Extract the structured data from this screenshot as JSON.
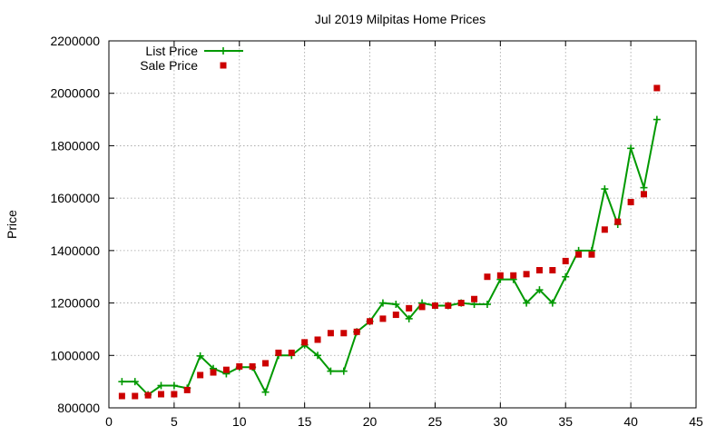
{
  "chart_data": {
    "type": "line",
    "title": "Jul 2019 Milpitas Home Prices",
    "xlabel": "",
    "ylabel": "Price",
    "xlim": [
      0,
      45
    ],
    "ylim": [
      800000,
      2200000
    ],
    "xticks": [
      0,
      5,
      10,
      15,
      20,
      25,
      30,
      35,
      40,
      45
    ],
    "yticks": [
      800000,
      1000000,
      1200000,
      1400000,
      1600000,
      1800000,
      2000000,
      2200000
    ],
    "grid": true,
    "legend_position": "top-left",
    "series": [
      {
        "name": "List Price",
        "style": "line-with-plus-markers",
        "color": "#009900",
        "points": [
          [
            1,
            900000
          ],
          [
            2,
            900000
          ],
          [
            3,
            850000
          ],
          [
            4,
            885000
          ],
          [
            5,
            885000
          ],
          [
            6,
            875000
          ],
          [
            7,
            998000
          ],
          [
            8,
            950000
          ],
          [
            9,
            930000
          ],
          [
            10,
            955000
          ],
          [
            11,
            955000
          ],
          [
            12,
            860000
          ],
          [
            13,
            1000000
          ],
          [
            14,
            1000000
          ],
          [
            15,
            1040000
          ],
          [
            16,
            1000000
          ],
          [
            17,
            940000
          ],
          [
            18,
            940000
          ],
          [
            19,
            1090000
          ],
          [
            20,
            1130000
          ],
          [
            21,
            1200000
          ],
          [
            22,
            1195000
          ],
          [
            23,
            1140000
          ],
          [
            24,
            1200000
          ],
          [
            25,
            1190000
          ],
          [
            26,
            1190000
          ],
          [
            27,
            1200000
          ],
          [
            28,
            1195000
          ],
          [
            29,
            1195000
          ],
          [
            30,
            1290000
          ],
          [
            31,
            1290000
          ],
          [
            32,
            1200000
          ],
          [
            33,
            1250000
          ],
          [
            34,
            1200000
          ],
          [
            35,
            1300000
          ],
          [
            36,
            1400000
          ],
          [
            37,
            1400000
          ],
          [
            38,
            1635000
          ],
          [
            39,
            1500000
          ],
          [
            40,
            1790000
          ],
          [
            41,
            1640000
          ],
          [
            42,
            1900000
          ]
        ]
      },
      {
        "name": "Sale Price",
        "style": "square-markers",
        "color": "#cc0000",
        "points": [
          [
            1,
            845000
          ],
          [
            2,
            845000
          ],
          [
            3,
            848000
          ],
          [
            4,
            852000
          ],
          [
            5,
            852000
          ],
          [
            6,
            868000
          ],
          [
            7,
            925000
          ],
          [
            8,
            935000
          ],
          [
            9,
            945000
          ],
          [
            10,
            958000
          ],
          [
            11,
            958000
          ],
          [
            12,
            970000
          ],
          [
            13,
            1010000
          ],
          [
            14,
            1010000
          ],
          [
            15,
            1050000
          ],
          [
            16,
            1060000
          ],
          [
            17,
            1085000
          ],
          [
            18,
            1085000
          ],
          [
            19,
            1090000
          ],
          [
            20,
            1130000
          ],
          [
            21,
            1140000
          ],
          [
            22,
            1155000
          ],
          [
            23,
            1180000
          ],
          [
            24,
            1185000
          ],
          [
            25,
            1190000
          ],
          [
            26,
            1190000
          ],
          [
            27,
            1200000
          ],
          [
            28,
            1215000
          ],
          [
            29,
            1300000
          ],
          [
            30,
            1305000
          ],
          [
            31,
            1305000
          ],
          [
            32,
            1310000
          ],
          [
            33,
            1325000
          ],
          [
            34,
            1325000
          ],
          [
            35,
            1360000
          ],
          [
            36,
            1385000
          ],
          [
            37,
            1385000
          ],
          [
            38,
            1480000
          ],
          [
            39,
            1510000
          ],
          [
            40,
            1585000
          ],
          [
            41,
            1615000
          ],
          [
            42,
            2020000
          ]
        ]
      }
    ]
  }
}
